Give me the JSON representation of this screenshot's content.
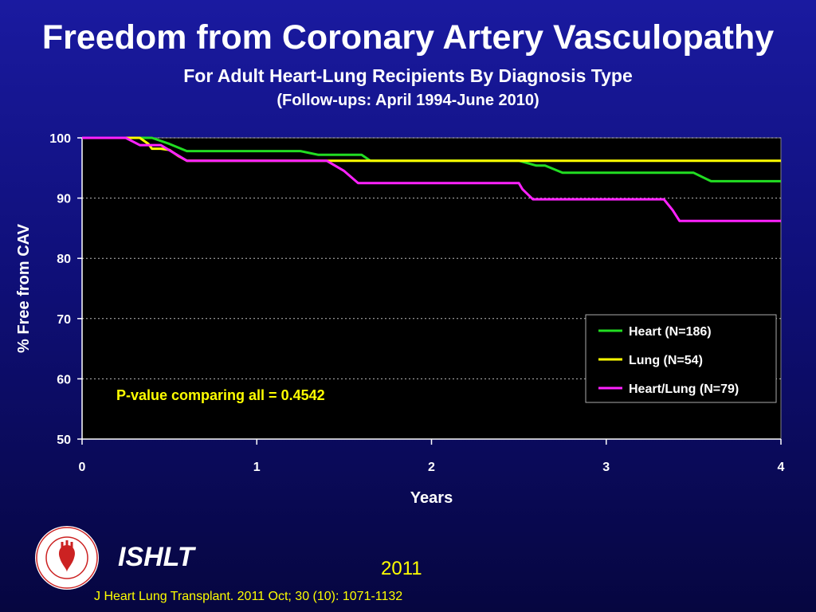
{
  "title": "Freedom from Coronary Artery Vasculopathy",
  "subtitle": "For Adult Heart-Lung Recipients By Diagnosis Type",
  "subtitle2": "(Follow-ups: April 1994-June 2010)",
  "footer": {
    "org": "ISHLT",
    "year": "2011",
    "citation": "J Heart Lung Transplant. 2011 Oct; 30 (10): 1071-1132",
    "logo_text": "INTERNATIONAL SOCIETY FOR HEART & LUNG TRANSPLANTATION"
  },
  "chart_data": {
    "type": "line",
    "step": true,
    "xlabel": "Years",
    "ylabel": "% Free from CAV",
    "xlim": [
      0,
      4
    ],
    "ylim": [
      50,
      100
    ],
    "xticks": [
      0,
      1,
      2,
      3,
      4
    ],
    "yticks": [
      50,
      60,
      70,
      80,
      90,
      100
    ],
    "grid": "horizontal dotted",
    "legend_position": "right",
    "annotation": "P-value comparing all = 0.4542",
    "plot_background": "#000000",
    "series": [
      {
        "name": "Heart (N=186)",
        "color": "#22dd22",
        "x": [
          0,
          0.4,
          0.5,
          0.6,
          1.25,
          1.35,
          1.6,
          1.65,
          2.5,
          2.6,
          2.65,
          2.75,
          3.5,
          3.6,
          4
        ],
        "y": [
          100,
          100,
          99,
          97.8,
          97.8,
          97.2,
          97.2,
          96.2,
          96.2,
          95.4,
          95.4,
          94.2,
          94.2,
          92.8,
          92.8
        ]
      },
      {
        "name": "Lung (N=54)",
        "color": "#ffff00",
        "x": [
          0,
          0.33,
          0.38,
          0.4,
          0.45,
          0.5,
          0.55,
          0.6,
          4
        ],
        "y": [
          100,
          100,
          99,
          98.2,
          98.2,
          98,
          97,
          96.2,
          96.2
        ]
      },
      {
        "name": "Heart/Lung (N=79)",
        "color": "#ff22ff",
        "x": [
          0,
          0.25,
          0.33,
          0.45,
          0.6,
          1.4,
          1.5,
          1.58,
          2.5,
          2.52,
          2.58,
          3.33,
          3.38,
          3.42,
          4
        ],
        "y": [
          100,
          100,
          98.8,
          98.8,
          96.2,
          96.2,
          94.5,
          92.5,
          92.5,
          91.5,
          89.8,
          89.8,
          88,
          86.2,
          86.2
        ]
      }
    ]
  }
}
